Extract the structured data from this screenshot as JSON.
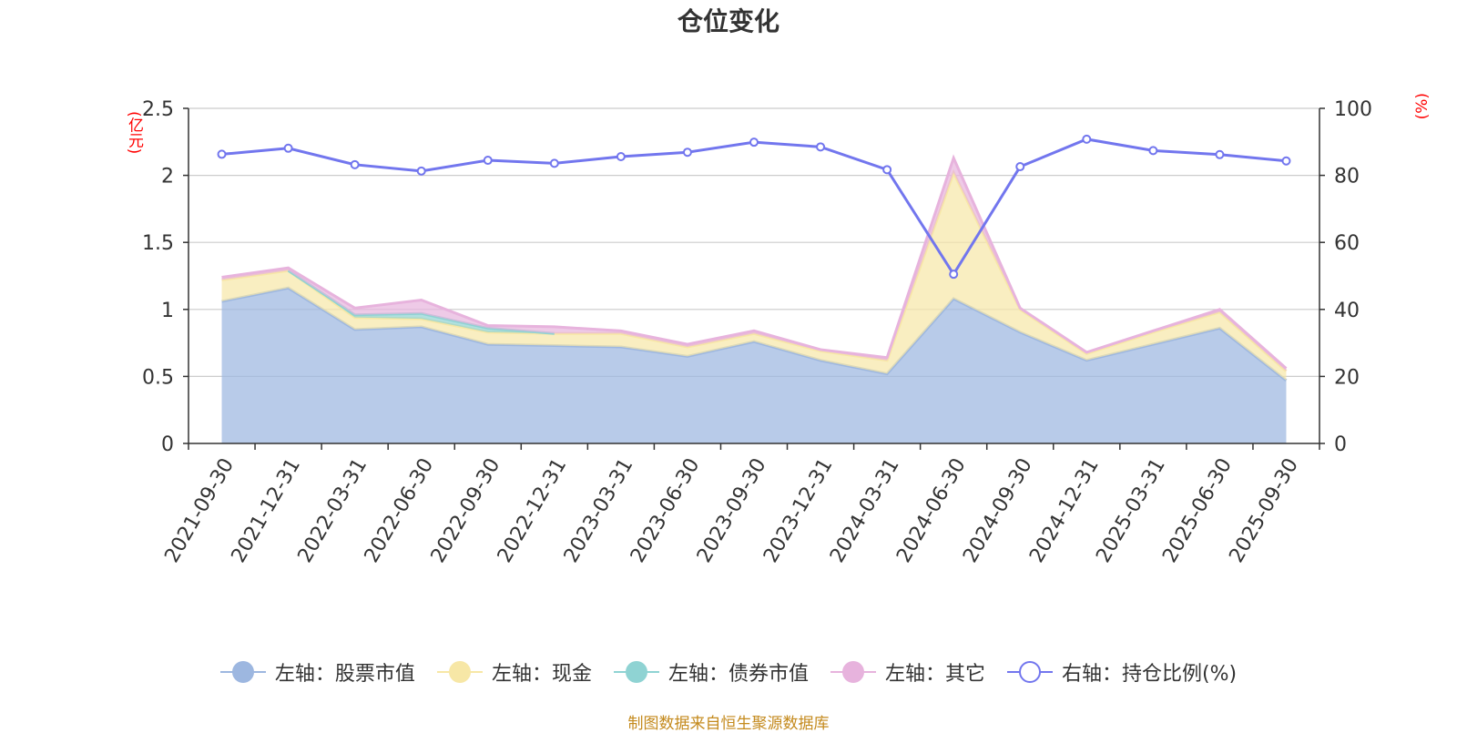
{
  "title": "仓位变化",
  "unit_left": "(亿元)",
  "unit_right": "(%)",
  "source": "制图数据来自恒生聚源数据库",
  "colors": {
    "stock": "#9db7e0",
    "cash": "#f7e7a6",
    "bond": "#8fd3d3",
    "other": "#e7b3dd",
    "ratio": "#7276ee",
    "grid": "#cccccc",
    "axis": "#333333"
  },
  "chart_data": {
    "type": "area",
    "title": "仓位变化",
    "categories": [
      "2021-09-30",
      "2021-12-31",
      "2022-03-31",
      "2022-06-30",
      "2022-09-30",
      "2022-12-31",
      "2023-03-31",
      "2023-06-30",
      "2023-09-30",
      "2023-12-31",
      "2024-03-31",
      "2024-06-30",
      "2024-09-30",
      "2024-12-31",
      "2025-03-31",
      "2025-06-30",
      "2025-09-30"
    ],
    "left_axis": {
      "label": "(亿元)",
      "ylim": [
        0,
        2.5
      ],
      "ticks": [
        "0",
        "0.5",
        "1",
        "1.5",
        "2",
        "2.5"
      ]
    },
    "right_axis": {
      "label": "(%)",
      "ylim": [
        0,
        100
      ],
      "ticks": [
        "0",
        "20",
        "40",
        "60",
        "80",
        "100"
      ]
    },
    "series": [
      {
        "name": "左轴：股票市值",
        "axis": "left",
        "stack": true,
        "values": [
          1.06,
          1.16,
          0.85,
          0.87,
          0.74,
          0.73,
          0.72,
          0.65,
          0.76,
          0.62,
          0.52,
          1.08,
          0.83,
          0.62,
          0.74,
          0.86,
          0.47
        ]
      },
      {
        "name": "左轴：现金",
        "axis": "left",
        "stack": true,
        "values": [
          0.16,
          0.13,
          0.09,
          0.06,
          0.09,
          0.09,
          0.1,
          0.07,
          0.06,
          0.07,
          0.1,
          0.94,
          0.17,
          0.05,
          0.09,
          0.12,
          0.07
        ]
      },
      {
        "name": "左轴：债券市值",
        "axis": "left",
        "stack": true,
        "values": [
          0,
          0,
          0.02,
          0.04,
          0.03,
          0,
          0,
          0,
          0,
          0,
          0,
          0,
          0,
          0,
          0,
          0,
          0
        ]
      },
      {
        "name": "左轴：其它",
        "axis": "left",
        "stack": true,
        "values": [
          0.02,
          0.02,
          0.05,
          0.1,
          0.02,
          0.05,
          0.02,
          0.02,
          0.02,
          0.01,
          0.02,
          0.11,
          0.01,
          0.01,
          0.01,
          0.02,
          0.02
        ]
      },
      {
        "name": "右轴：持仓比例(%)",
        "axis": "right",
        "type": "line",
        "values": [
          86.3,
          88.1,
          83.2,
          81.3,
          84.5,
          83.6,
          85.6,
          86.9,
          89.9,
          88.5,
          81.7,
          50.5,
          82.6,
          90.8,
          87.4,
          86.2,
          84.3
        ]
      }
    ]
  }
}
